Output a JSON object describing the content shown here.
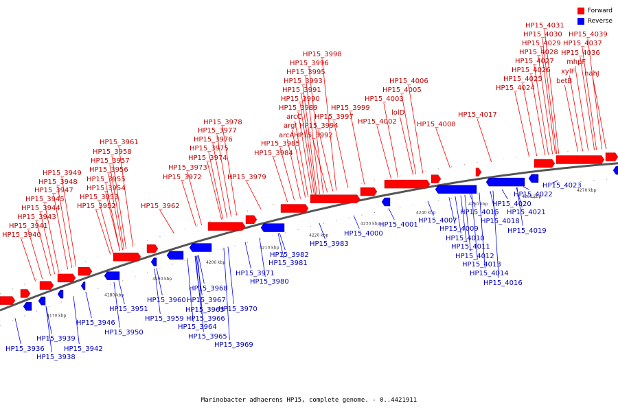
{
  "legend": {
    "forward_label": "Forward",
    "reverse_label": "Reverse",
    "forward_color": "#ff0000",
    "reverse_color": "#0000ff"
  },
  "caption": "Marinobacter adhaerens HP15, complete genome. - 0..4421911",
  "axis_ticks": [
    "4170 kbp",
    "4180 kbp",
    "4190 kbp",
    "4200 kbp",
    "4210 kbp",
    "4220 kbp",
    "4230 kbp",
    "4240 kbp",
    "4250 kbp",
    "4260 kbp",
    "4270 kbp"
  ],
  "forward_labels": [
    "HP15_3940",
    "HP15_3941",
    "HP15_3943",
    "HP15_3944",
    "HP15_3945",
    "HP15_3947",
    "HP15_3948",
    "HP15_3949",
    "HP15_3952",
    "HP15_3953",
    "HP15_3954",
    "HP15_3955",
    "HP15_3956",
    "HP15_3957",
    "HP15_3958",
    "HP15_3961",
    "HP15_3962",
    "HP15_3972",
    "HP15_3973",
    "HP15_3974",
    "HP15_3975",
    "HP15_3976",
    "HP15_3977",
    "HP15_3978",
    "HP15_3979",
    "HP15_3984",
    "HP15_3985",
    "arcA",
    "HP15_3992",
    "HP15_3994",
    "argI",
    "arcC",
    "HP15_3989",
    "HP15_3990",
    "HP15_3991",
    "HP15_3993",
    "HP15_3995",
    "HP15_3996",
    "HP15_3998",
    "HP15_3997",
    "HP15_3999",
    "HP15_4002",
    "HP15_4003",
    "lolD",
    "HP15_4005",
    "HP15_4006",
    "HP15_4008",
    "HP15_4017",
    "HP15_4024",
    "HP15_4025",
    "HP15_4026",
    "HP15_4027",
    "HP15_4028",
    "HP15_4029",
    "HP15_4030",
    "HP15_4031",
    "betB",
    "xylF",
    "mhpF",
    "HP15_4036",
    "HP15_4037",
    "HP15_4039",
    "nahJ"
  ],
  "reverse_labels": [
    "HP15_3936",
    "HP15_3939",
    "HP15_3938",
    "HP15_3942",
    "HP15_3946",
    "HP15_3950",
    "HP15_3951",
    "HP15_3960",
    "HP15_3959",
    "HP15_3963",
    "HP15_3964",
    "HP15_3965",
    "HP15_3966",
    "HP15_3967",
    "HP15_3968",
    "HP15_3969",
    "HP15_3970",
    "HP15_3971",
    "HP15_3980",
    "HP15_3981",
    "HP15_3982",
    "HP15_3983",
    "HP15_4000",
    "HP15_4001",
    "HP15_4007",
    "HP15_4009",
    "HP15_4010",
    "HP15_4011",
    "HP15_4012",
    "HP15_4013",
    "HP15_4014",
    "HP15_4015",
    "HP15_4016",
    "HP15_4018",
    "HP15_4019",
    "HP15_4020",
    "HP15_4021",
    "HP15_4022",
    "HP15_4023"
  ]
}
